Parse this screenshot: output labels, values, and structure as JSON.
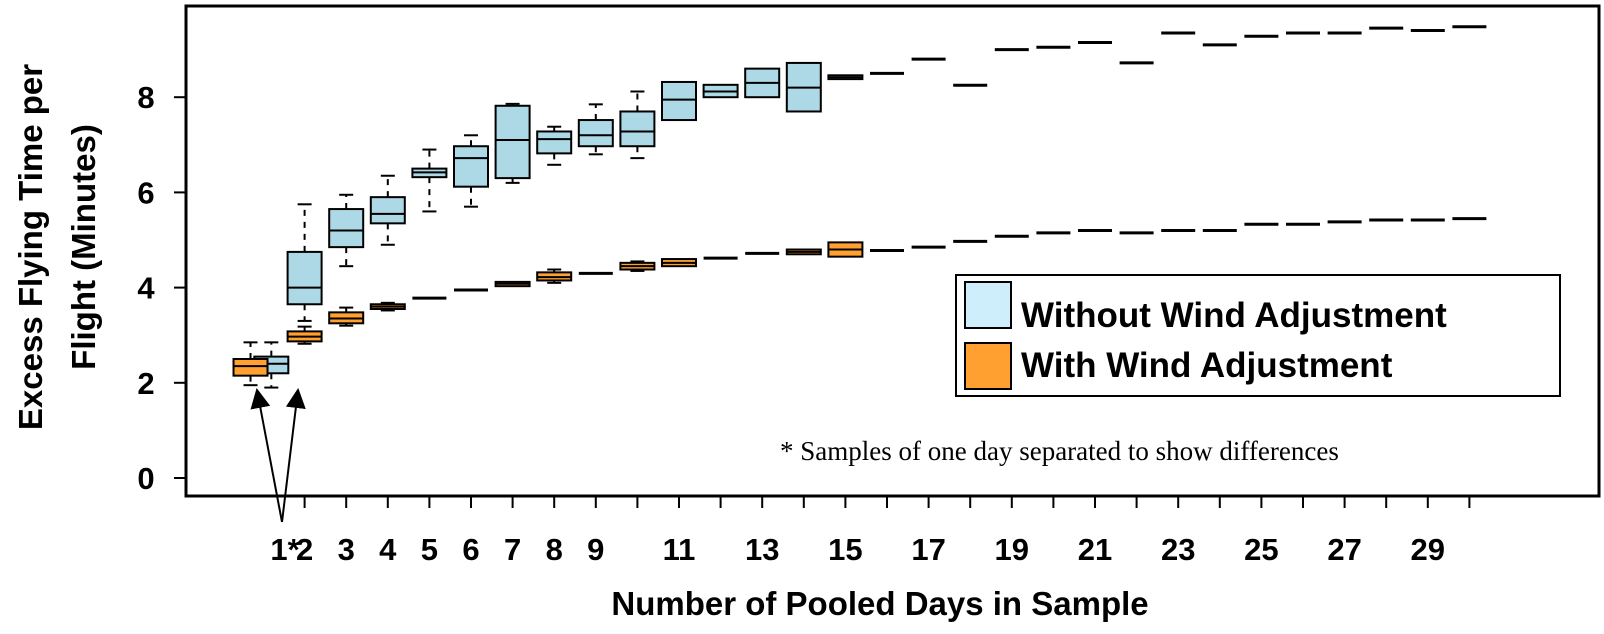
{
  "chart_data": {
    "type": "box",
    "title": "",
    "xlabel": "Number of Pooled Days in Sample",
    "ylabel_line1": "Excess Flying Time per",
    "ylabel_line2": "Flight (Minutes)",
    "ylim": [
      -0.4,
      9.8
    ],
    "yticks": [
      0,
      2,
      4,
      6,
      8
    ],
    "ytick_labels": [
      "0",
      "2",
      "4",
      "6",
      "8"
    ],
    "xtick_labels": [
      {
        "label": "1*",
        "x": 1
      },
      {
        "label": "2",
        "x": 2
      },
      {
        "label": "3",
        "x": 3
      },
      {
        "label": "4",
        "x": 4
      },
      {
        "label": "5",
        "x": 5
      },
      {
        "label": "6",
        "x": 6
      },
      {
        "label": "7",
        "x": 7
      },
      {
        "label": "8",
        "x": 8
      },
      {
        "label": "9",
        "x": 9
      },
      {
        "label": "11",
        "x": 11
      },
      {
        "label": "13",
        "x": 13
      },
      {
        "label": "15",
        "x": 15
      },
      {
        "label": "17",
        "x": 17
      },
      {
        "label": "19",
        "x": 19
      },
      {
        "label": "21",
        "x": 21
      },
      {
        "label": "23",
        "x": 23
      },
      {
        "label": "25",
        "x": 25
      },
      {
        "label": "27",
        "x": 27
      },
      {
        "label": "29",
        "x": 29
      }
    ],
    "legend": {
      "position": "right",
      "entries": [
        {
          "name": "Without Wind Adjustment",
          "color": "#add8e6"
        },
        {
          "name": "With Wind Adjustment",
          "color": "#ffa030"
        }
      ]
    },
    "annotation": "* Samples of one day separated to show differences",
    "series": [
      {
        "name": "Without Wind Adjustment",
        "color": "#add8e6",
        "boxes": [
          {
            "x": 1.2,
            "wlo": 1.9,
            "q1": 2.2,
            "med": 2.4,
            "q3": 2.55,
            "whi": 2.85
          },
          {
            "x": 2,
            "wlo": 3.3,
            "q1": 3.65,
            "med": 4.0,
            "q3": 4.75,
            "whi": 5.75
          },
          {
            "x": 3,
            "wlo": 4.45,
            "q1": 4.85,
            "med": 5.2,
            "q3": 5.65,
            "whi": 5.95
          },
          {
            "x": 4,
            "wlo": 4.9,
            "q1": 5.35,
            "med": 5.55,
            "q3": 5.9,
            "whi": 6.35
          },
          {
            "x": 5,
            "wlo": 5.6,
            "q1": 6.32,
            "med": 6.42,
            "q3": 6.5,
            "whi": 6.9
          },
          {
            "x": 6,
            "wlo": 5.7,
            "q1": 6.12,
            "med": 6.72,
            "q3": 6.97,
            "whi": 7.2
          },
          {
            "x": 7,
            "wlo": 6.2,
            "q1": 6.3,
            "med": 7.1,
            "q3": 7.82,
            "whi": 7.86
          },
          {
            "x": 8,
            "wlo": 6.58,
            "q1": 6.82,
            "med": 7.12,
            "q3": 7.28,
            "whi": 7.38
          },
          {
            "x": 9,
            "wlo": 6.8,
            "q1": 6.97,
            "med": 7.2,
            "q3": 7.52,
            "whi": 7.85
          },
          {
            "x": 10,
            "wlo": 6.72,
            "q1": 6.97,
            "med": 7.28,
            "q3": 7.7,
            "whi": 8.12
          },
          {
            "x": 11,
            "wlo": 7.52,
            "q1": 7.52,
            "med": 7.95,
            "q3": 8.32,
            "whi": 8.32
          },
          {
            "x": 12,
            "wlo": 8.0,
            "q1": 8.0,
            "med": 8.12,
            "q3": 8.26,
            "whi": 8.26
          },
          {
            "x": 13,
            "wlo": 8.0,
            "q1": 8.0,
            "med": 8.3,
            "q3": 8.6,
            "whi": 8.6
          },
          {
            "x": 14,
            "wlo": 7.7,
            "q1": 7.7,
            "med": 8.2,
            "q3": 8.72,
            "whi": 8.72
          },
          {
            "x": 15,
            "wlo": 8.42,
            "q1": 8.38,
            "med": 8.42,
            "q3": 8.46,
            "whi": 8.42
          },
          {
            "x": 16,
            "med": 8.5
          },
          {
            "x": 17,
            "med": 8.8
          },
          {
            "x": 18,
            "med": 8.25
          },
          {
            "x": 19,
            "med": 9.0
          },
          {
            "x": 20,
            "med": 9.05
          },
          {
            "x": 21,
            "med": 9.15
          },
          {
            "x": 22,
            "med": 8.72
          },
          {
            "x": 23,
            "med": 9.35
          },
          {
            "x": 24,
            "med": 9.1
          },
          {
            "x": 25,
            "med": 9.28
          },
          {
            "x": 26,
            "med": 9.35
          },
          {
            "x": 27,
            "med": 9.35
          },
          {
            "x": 28,
            "med": 9.45
          },
          {
            "x": 29,
            "med": 9.4
          },
          {
            "x": 30,
            "med": 9.48
          }
        ]
      },
      {
        "name": "With Wind Adjustment",
        "color": "#ffa030",
        "boxes": [
          {
            "x": 0.7,
            "wlo": 1.95,
            "q1": 2.15,
            "med": 2.35,
            "q3": 2.5,
            "whi": 2.85
          },
          {
            "x": 2,
            "wlo": 2.82,
            "q1": 2.87,
            "med": 2.97,
            "q3": 3.08,
            "whi": 3.18
          },
          {
            "x": 3,
            "wlo": 3.2,
            "q1": 3.25,
            "med": 3.35,
            "q3": 3.48,
            "whi": 3.58
          },
          {
            "x": 4,
            "wlo": 3.52,
            "q1": 3.55,
            "med": 3.6,
            "q3": 3.65,
            "whi": 3.68
          },
          {
            "x": 5,
            "med": 3.78
          },
          {
            "x": 6,
            "med": 3.95
          },
          {
            "x": 7,
            "wlo": 4.03,
            "q1": 4.03,
            "med": 4.08,
            "q3": 4.12,
            "whi": 4.12
          },
          {
            "x": 8,
            "wlo": 4.1,
            "q1": 4.15,
            "med": 4.22,
            "q3": 4.32,
            "whi": 4.38
          },
          {
            "x": 9,
            "med": 4.3
          },
          {
            "x": 10,
            "wlo": 4.35,
            "q1": 4.38,
            "med": 4.45,
            "q3": 4.52,
            "whi": 4.55
          },
          {
            "x": 11,
            "wlo": 4.45,
            "q1": 4.45,
            "med": 4.52,
            "q3": 4.6,
            "whi": 4.6
          },
          {
            "x": 12,
            "med": 4.62
          },
          {
            "x": 13,
            "med": 4.72
          },
          {
            "x": 14,
            "wlo": 4.7,
            "q1": 4.7,
            "med": 4.75,
            "q3": 4.8,
            "whi": 4.8
          },
          {
            "x": 15,
            "wlo": 4.65,
            "q1": 4.65,
            "med": 4.8,
            "q3": 4.95,
            "whi": 4.95
          },
          {
            "x": 16,
            "med": 4.78
          },
          {
            "x": 17,
            "med": 4.85
          },
          {
            "x": 18,
            "med": 4.97
          },
          {
            "x": 19,
            "med": 5.08
          },
          {
            "x": 20,
            "med": 5.15
          },
          {
            "x": 21,
            "med": 5.2
          },
          {
            "x": 22,
            "med": 5.15
          },
          {
            "x": 23,
            "med": 5.2
          },
          {
            "x": 24,
            "med": 5.2
          },
          {
            "x": 25,
            "med": 5.33
          },
          {
            "x": 26,
            "med": 5.33
          },
          {
            "x": 27,
            "med": 5.38
          },
          {
            "x": 28,
            "med": 5.42
          },
          {
            "x": 29,
            "med": 5.42
          },
          {
            "x": 30,
            "med": 5.45
          }
        ]
      }
    ]
  }
}
